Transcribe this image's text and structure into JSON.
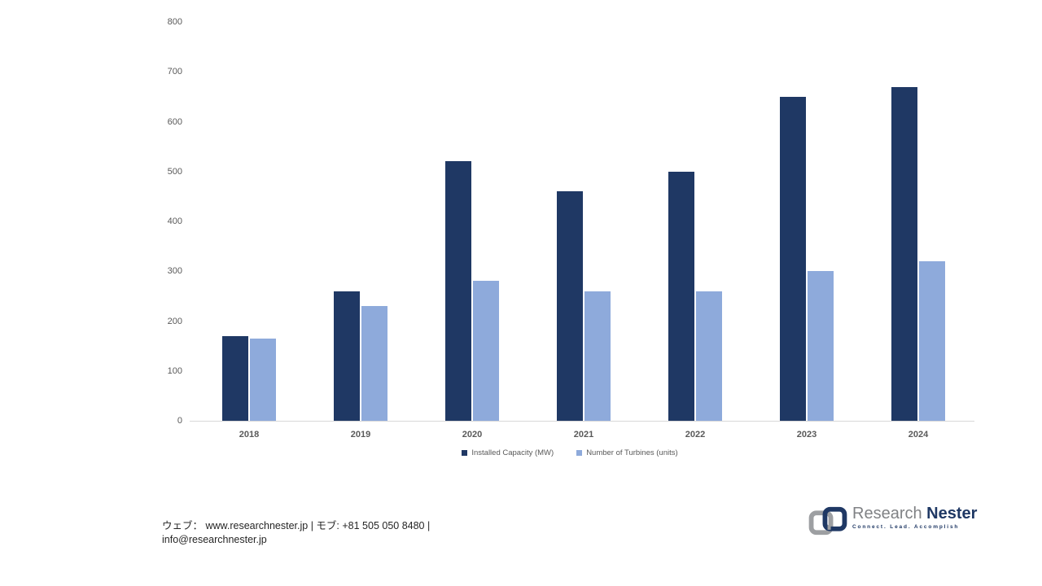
{
  "chart_data": {
    "type": "bar",
    "title": "",
    "categories": [
      "2018",
      "2019",
      "2020",
      "2021",
      "2022",
      "2023",
      "2024"
    ],
    "series": [
      {
        "name": "Installed Capacity (MW)",
        "color": "#1F3864",
        "values": [
          170,
          260,
          520,
          460,
          500,
          650,
          670
        ]
      },
      {
        "name": "Number of Turbines (units)",
        "color": "#8EAADB",
        "values": [
          165,
          230,
          280,
          260,
          260,
          300,
          320
        ]
      }
    ],
    "xlabel": "",
    "ylabel": "",
    "ylim": [
      0,
      800
    ],
    "ytick_step": 100,
    "ytick_labels": [
      "0",
      "100",
      "200",
      "300",
      "400",
      "500",
      "600",
      "700",
      "800"
    ],
    "grid": false,
    "legend_position": "bottom",
    "axis_line_color": "#D9D9D9",
    "tick_text_color": "#595959"
  },
  "footer": {
    "contact_line1": "ウェブ：  www.researchnester.jp | モブ: +81 505 050 8480 |",
    "contact_line2": "info@researchnester.jp"
  },
  "logo": {
    "brand_first": "Research",
    "brand_second": "Nester",
    "tagline": "Connect. Lead. Accomplish",
    "gray": "#9d9fa2",
    "navy": "#1f3864"
  }
}
